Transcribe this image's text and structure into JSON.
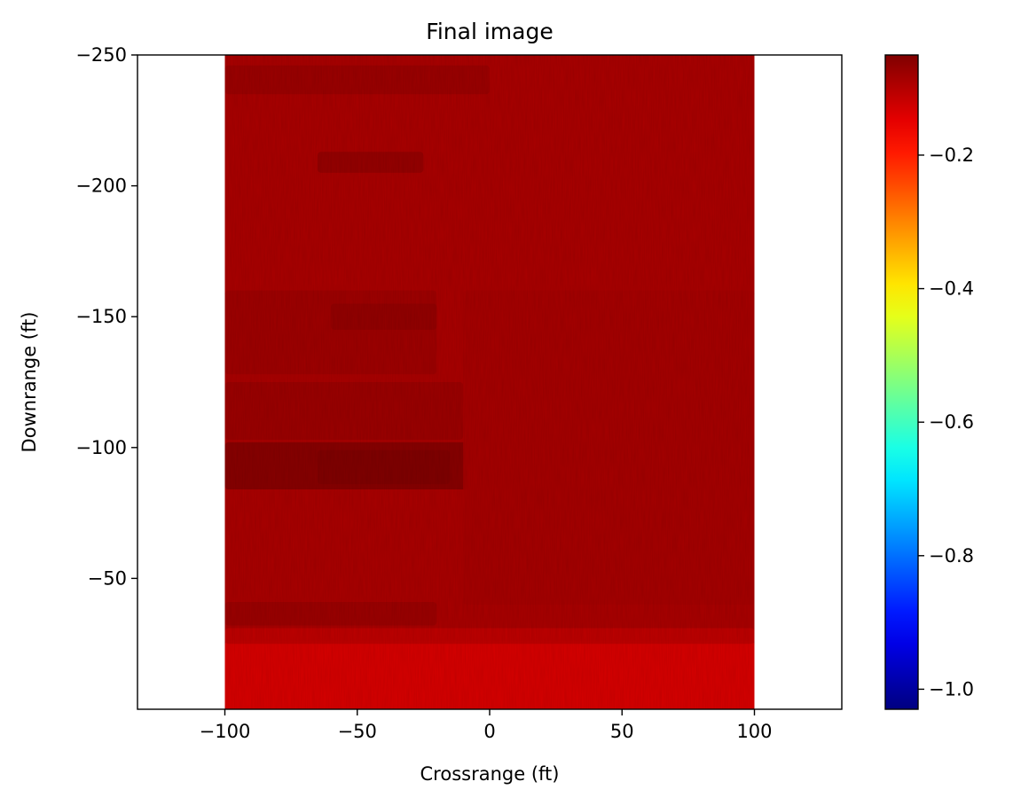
{
  "chart_data": {
    "type": "heatmap",
    "title": "Final image",
    "xlabel": "Crossrange (ft)",
    "ylabel": "Downrange (ft)",
    "xlim": [
      -133,
      133
    ],
    "ylim": [
      -250,
      0
    ],
    "y_inverted": true,
    "xticks": [
      -100,
      -50,
      0,
      50,
      100
    ],
    "xtick_labels": [
      "−100",
      "−50",
      "0",
      "50",
      "100"
    ],
    "yticks": [
      -250,
      -200,
      -150,
      -100,
      -50
    ],
    "ytick_labels": [
      "−250",
      "−200",
      "−150",
      "−100",
      "−50"
    ],
    "image_extent": {
      "x": [
        -100,
        100
      ],
      "y": [
        -250,
        0
      ]
    },
    "colormap": "jet",
    "color_range": [
      -1.03,
      -0.05
    ],
    "colorbar_ticks": [
      -1.0,
      -0.8,
      -0.6,
      -0.4,
      -0.2
    ],
    "colorbar_tick_labels": [
      "−1.0",
      "−0.8",
      "−0.6",
      "−0.4",
      "−0.2"
    ],
    "grid": false,
    "legend": "none",
    "field": {
      "background_value": -0.09,
      "bands": [
        {
          "x": [
            -100,
            100
          ],
          "y": [
            -26,
            0
          ],
          "value": -0.135
        },
        {
          "x": [
            -100,
            100
          ],
          "y": [
            -31,
            -25
          ],
          "value": -0.11
        },
        {
          "x": [
            -100,
            -20
          ],
          "y": [
            -41,
            -32
          ],
          "value": -0.075
        },
        {
          "x": [
            -100,
            -8
          ],
          "y": [
            -102,
            -84
          ],
          "value": -0.055
        },
        {
          "x": [
            -65,
            -15
          ],
          "y": [
            -99,
            -86
          ],
          "value": -0.05
        },
        {
          "x": [
            -100,
            -10
          ],
          "y": [
            -125,
            -103
          ],
          "value": -0.075
        },
        {
          "x": [
            -100,
            -20
          ],
          "y": [
            -160,
            -128
          ],
          "value": -0.078
        },
        {
          "x": [
            -60,
            -20
          ],
          "y": [
            -155,
            -145
          ],
          "value": -0.068
        },
        {
          "x": [
            -65,
            -25
          ],
          "y": [
            -213,
            -205
          ],
          "value": -0.07
        },
        {
          "x": [
            -100,
            0
          ],
          "y": [
            -246,
            -235
          ],
          "value": -0.075
        },
        {
          "x": [
            -10,
            100
          ],
          "y": [
            -160,
            -40
          ],
          "value": -0.085
        }
      ]
    }
  }
}
